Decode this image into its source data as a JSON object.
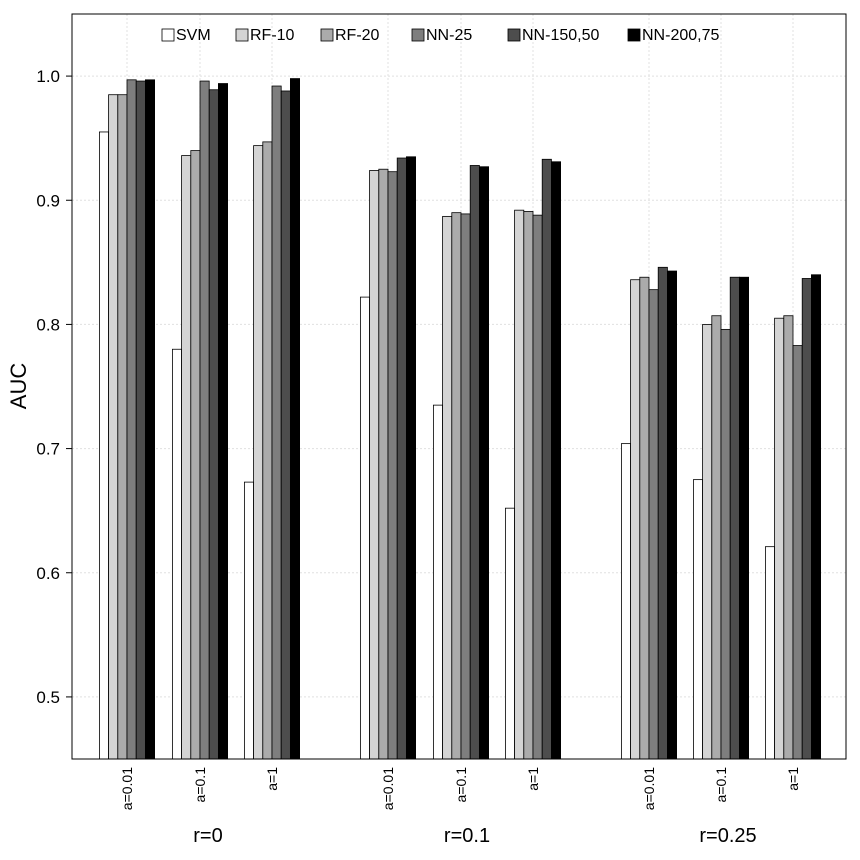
{
  "chart_data": {
    "type": "bar",
    "ylabel": "AUC",
    "ylim": [
      0.45,
      1.05
    ],
    "yticks": [
      "0.5",
      "0.6",
      "0.7",
      "0.8",
      "0.9",
      "1.0"
    ],
    "grid": true,
    "legend_placement": "top",
    "groups": [
      {
        "label": "r=0",
        "categories": [
          "a=0.01",
          "a=0.1",
          "a=1"
        ]
      },
      {
        "label": "r=0.1",
        "categories": [
          "a=0.01",
          "a=0.1",
          "a=1"
        ]
      },
      {
        "label": "r=0.25",
        "categories": [
          "a=0.01",
          "a=0.1",
          "a=1"
        ]
      }
    ],
    "series": [
      {
        "name": "SVM",
        "color": "#ffffff",
        "values": [
          0.955,
          0.78,
          0.673,
          0.822,
          0.735,
          0.652,
          0.704,
          0.675,
          0.621
        ]
      },
      {
        "name": "RF-10",
        "color": "#d4d4d4",
        "values": [
          0.985,
          0.936,
          0.944,
          0.924,
          0.887,
          0.892,
          0.836,
          0.8,
          0.805
        ]
      },
      {
        "name": "RF-20",
        "color": "#ababab",
        "values": [
          0.985,
          0.94,
          0.947,
          0.925,
          0.89,
          0.891,
          0.838,
          0.807,
          0.807
        ]
      },
      {
        "name": "NN-25",
        "color": "#7e7e7e",
        "values": [
          0.997,
          0.996,
          0.992,
          0.923,
          0.889,
          0.888,
          0.828,
          0.796,
          0.783
        ]
      },
      {
        "name": "NN-150,50",
        "color": "#4d4d4d",
        "values": [
          0.996,
          0.989,
          0.988,
          0.934,
          0.928,
          0.933,
          0.846,
          0.838,
          0.837
        ]
      },
      {
        "name": "NN-200,75",
        "color": "#000000",
        "values": [
          0.997,
          0.994,
          0.998,
          0.935,
          0.927,
          0.931,
          0.843,
          0.838,
          0.84
        ]
      }
    ]
  }
}
